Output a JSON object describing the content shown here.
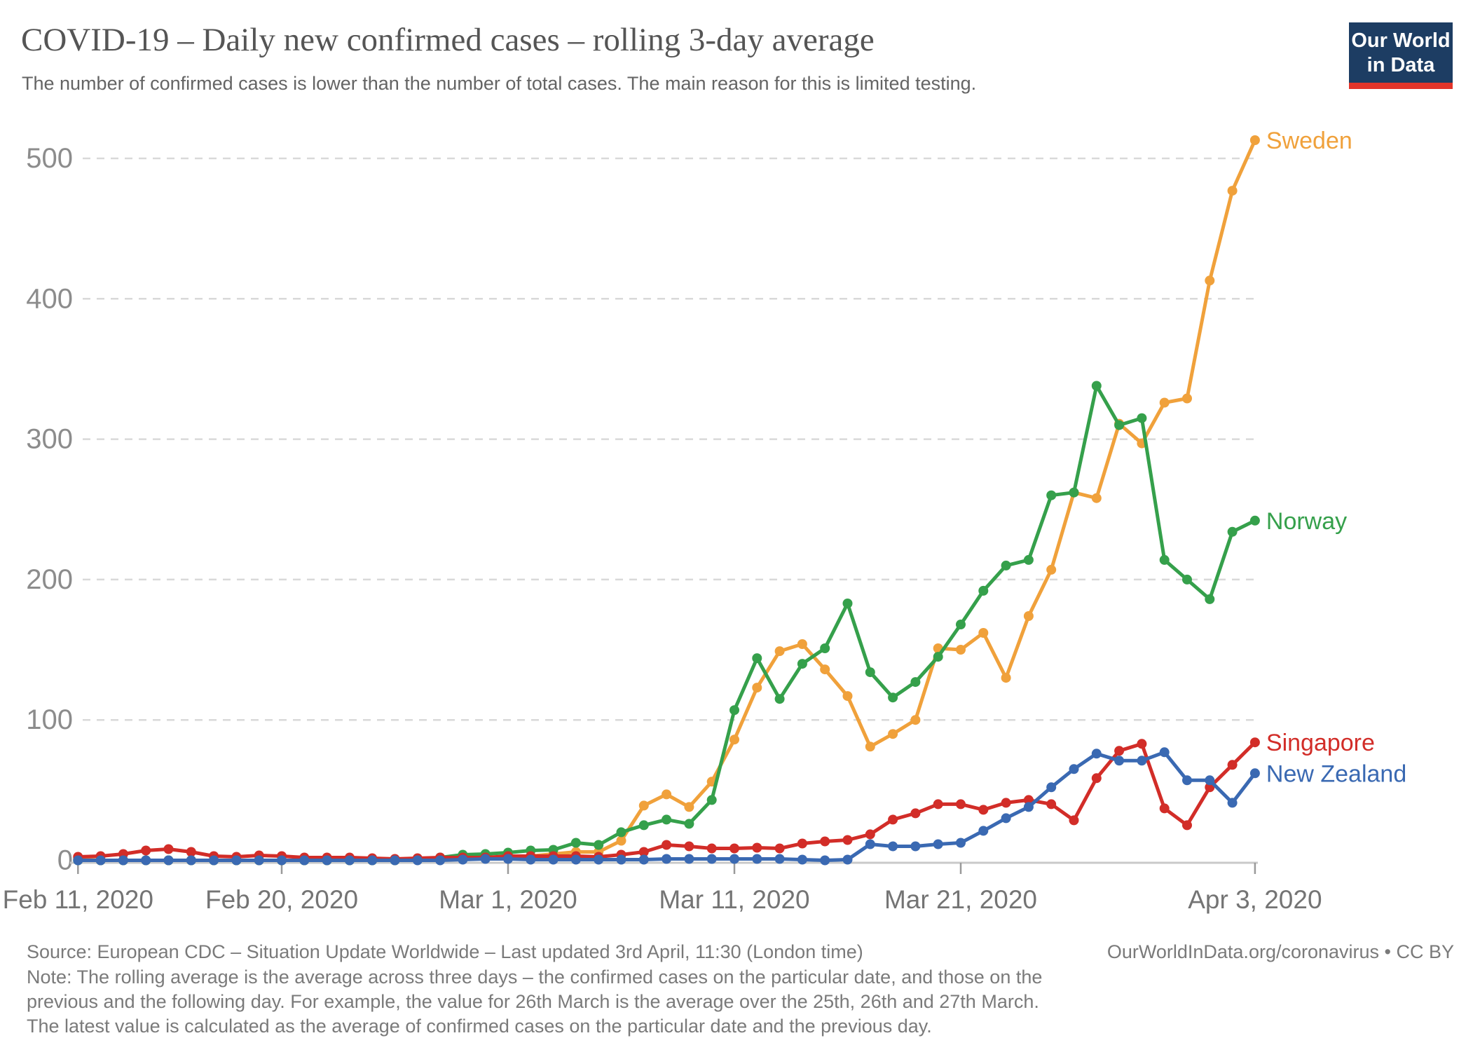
{
  "header": {
    "title": "COVID-19 – Daily new confirmed cases – rolling 3-day average",
    "subtitle": "The number of confirmed cases is lower than the number of total cases. The main reason for this is limited testing.",
    "logo": {
      "line1": "Our World",
      "line2": "in Data",
      "bg_color": "#1d3d63",
      "accent_color": "#e2342a"
    }
  },
  "footer": {
    "source": "Source: European CDC – Situation Update Worldwide – Last updated 3rd April, 11:30 (London time)",
    "license": "OurWorldInData.org/coronavirus • CC BY",
    "note": "Note: The rolling average is the average across three days – the confirmed cases on the particular date, and those on the previous and the following day. For example, the value for 26th March is the average over the 25th, 26th and 27th March. The latest value is calculated as the average of confirmed cases on the particular date and the previous day."
  },
  "chart_data": {
    "type": "line",
    "title": "COVID-19 – Daily new confirmed cases – rolling 3-day average",
    "x_unit": "days since Feb 11, 2020",
    "x_range_days": [
      0,
      52
    ],
    "ylim": [
      0,
      520
    ],
    "grid": "horizontal-dashed",
    "legend": "line-end-labels",
    "y_ticks": [
      0,
      100,
      200,
      300,
      400,
      500
    ],
    "x_tick_labels": [
      {
        "day": 0,
        "label": "Feb 11, 2020"
      },
      {
        "day": 9,
        "label": "Feb 20, 2020"
      },
      {
        "day": 19,
        "label": "Mar 1, 2020"
      },
      {
        "day": 29,
        "label": "Mar 11, 2020"
      },
      {
        "day": 39,
        "label": "Mar 21, 2020"
      },
      {
        "day": 52,
        "label": "Apr 3, 2020"
      }
    ],
    "series": [
      {
        "name": "Sweden",
        "color": "#f0a13b",
        "values": [
          1,
          0,
          0,
          0,
          0,
          0,
          0,
          0,
          0,
          0,
          0,
          0,
          0,
          0,
          0,
          0.5,
          1,
          2,
          2,
          2.5,
          3,
          4.5,
          6,
          6,
          14,
          39,
          47,
          38,
          56,
          86,
          123,
          149,
          154,
          136,
          117,
          81,
          90,
          100,
          151,
          150,
          162,
          130,
          174,
          207,
          262,
          258,
          311,
          297,
          326,
          329,
          413,
          477,
          513
        ]
      },
      {
        "name": "Norway",
        "color": "#35a04b",
        "values": [
          0,
          0,
          0,
          0,
          0,
          0,
          0,
          0,
          0,
          0,
          0,
          0,
          0,
          0,
          0,
          0.5,
          2,
          4,
          4.5,
          5.5,
          7,
          7.5,
          12.5,
          11,
          20,
          25,
          29,
          26,
          43,
          107,
          144,
          115,
          140,
          151,
          183,
          134,
          116,
          127,
          145,
          168,
          192,
          210,
          214,
          260,
          262,
          338,
          310,
          315,
          214,
          200,
          186,
          234,
          242
        ]
      },
      {
        "name": "Singapore",
        "color": "#d22d28",
        "values": [
          2.5,
          3,
          4.5,
          7,
          8,
          6,
          3,
          2.5,
          3.5,
          3,
          2,
          2,
          2,
          1.5,
          1,
          1.5,
          2,
          2,
          2,
          3,
          3,
          3,
          3,
          2.5,
          4,
          6,
          11,
          10,
          8.5,
          8.5,
          9,
          8.5,
          12,
          13.5,
          14.5,
          18.5,
          29,
          33.5,
          40,
          40,
          36,
          41,
          43,
          40,
          28.5,
          58.5,
          78,
          83,
          37,
          25,
          52,
          68,
          84
        ]
      },
      {
        "name": "New Zealand",
        "color": "#3a69b2",
        "values": [
          0,
          0,
          0,
          0,
          0,
          0,
          0,
          0,
          0,
          0,
          0,
          0,
          0,
          0,
          0,
          0,
          0,
          0.5,
          1,
          1,
          0.5,
          0.5,
          0.5,
          0.5,
          0.5,
          0.5,
          1,
          1,
          1,
          1,
          1,
          1,
          0.5,
          0,
          0.5,
          11.5,
          10,
          10,
          11.5,
          12.5,
          21,
          30,
          38,
          52,
          65,
          76,
          71,
          71,
          77,
          57,
          57,
          41,
          62
        ]
      }
    ]
  }
}
